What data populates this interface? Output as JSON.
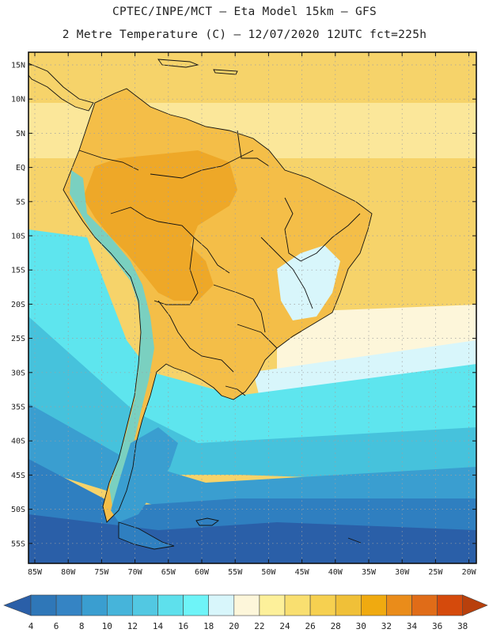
{
  "title_line1": "CPTEC/INPE/MCT –  Eta Model 15km – GFS",
  "title_line2": "2 Metre Temperature (C) – 12/07/2020 12UTC fct=225h",
  "map": {
    "lat_ticks": [
      "15N",
      "10N",
      "5N",
      "EQ",
      "5S",
      "10S",
      "15S",
      "20S",
      "25S",
      "30S",
      "35S",
      "40S",
      "45S",
      "50S",
      "55S"
    ],
    "lon_ticks": [
      "85W",
      "80W",
      "75W",
      "70W",
      "65W",
      "60W",
      "55W",
      "50W",
      "45W",
      "40W",
      "35W",
      "30W",
      "25W",
      "20W"
    ],
    "colors": {
      "ocean_north": "#f6d36a",
      "ocean_north_band": "#fbe79a",
      "ocean_pale": "#fdf6da",
      "tropics_warm": "#f4be48",
      "amazon_hot": "#eea828",
      "subtropic_pale": "#d8f6fb",
      "mid_cyan": "#5ee5ee",
      "mid_blue": "#46c2dc",
      "cool_blue": "#3a9ed0",
      "cold_blue": "#2f7fc0",
      "deep_blue": "#2a5fa8",
      "andes_green": "#7ad0c0",
      "land_outline": "#111111",
      "grid": "#a0a0a0"
    }
  },
  "legend": {
    "labels": [
      "4",
      "6",
      "8",
      "10",
      "12",
      "14",
      "16",
      "18",
      "20",
      "22",
      "24",
      "26",
      "28",
      "30",
      "32",
      "34",
      "36",
      "38"
    ],
    "colors": [
      "#2a5fa8",
      "#2f77b8",
      "#3584c4",
      "#3a9ed0",
      "#46b4da",
      "#52c8e2",
      "#5ee0ec",
      "#6ef4f8",
      "#d8f6fb",
      "#fdf6da",
      "#fdf09a",
      "#f9df70",
      "#f6d050",
      "#f0c038",
      "#f0aa10",
      "#ea8c1a",
      "#e06c18",
      "#d54a0c",
      "#b8400c"
    ]
  }
}
